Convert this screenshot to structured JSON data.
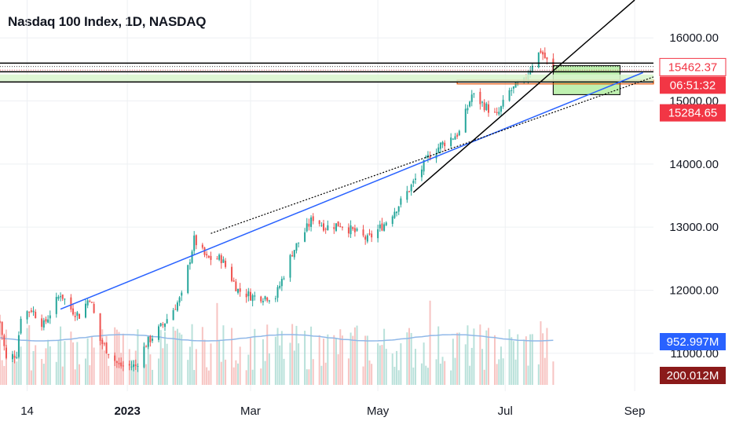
{
  "header": {
    "title": "Nasdaq 100 Index, 1D, NASDAQ"
  },
  "colors": {
    "up": "#26a69a",
    "down": "#ef5350",
    "trend_blue": "#2962ff",
    "volume_ma": "#90b8e8",
    "badge_red": "#f23645",
    "badge_blue": "#2962ff",
    "badge_dark_red": "#8b1a1a",
    "zone_green": "#b9f0a8",
    "zone_orange": "#e65100"
  },
  "badges": {
    "price": "15462.37",
    "countdown": "06:51:32",
    "level": "15284.65",
    "volume": "952.997M",
    "volume_ma": "200.012M"
  },
  "chart_data": {
    "type": "candlestick",
    "title": "Nasdaq 100 Index, 1D, NASDAQ",
    "y_ticks": [
      "16000.00",
      "15000.00",
      "14000.00",
      "13000.00",
      "12000.00",
      "11000.00"
    ],
    "y_range": [
      10400,
      16600
    ],
    "x_ticks": [
      "14",
      "2023",
      "Mar",
      "May",
      "Jul",
      "Sep"
    ],
    "x_range": [
      "2022-11-01",
      "2023-09-10"
    ],
    "grid": true,
    "last_price": 15462.37,
    "price_path": [
      [
        "2022-11-01",
        11500
      ],
      [
        "2022-11-04",
        10900
      ],
      [
        "2022-11-09",
        11000
      ],
      [
        "2022-11-11",
        11600
      ],
      [
        "2022-11-16",
        11700
      ],
      [
        "2022-11-22",
        11450
      ],
      [
        "2022-11-30",
        11950
      ],
      [
        "2022-12-05",
        11700
      ],
      [
        "2022-12-09",
        11600
      ],
      [
        "2022-12-14",
        11900
      ],
      [
        "2022-12-19",
        11200
      ],
      [
        "2022-12-28",
        10800
      ],
      [
        "2023-01-05",
        10800
      ],
      [
        "2023-01-10",
        11150
      ],
      [
        "2023-01-18",
        11450
      ],
      [
        "2023-01-27",
        11900
      ],
      [
        "2023-02-02",
        12800
      ],
      [
        "2023-02-08",
        12500
      ],
      [
        "2023-02-15",
        12500
      ],
      [
        "2023-02-23",
        12000
      ],
      [
        "2023-03-02",
        11900
      ],
      [
        "2023-03-13",
        11900
      ],
      [
        "2023-03-21",
        12600
      ],
      [
        "2023-03-31",
        13150
      ],
      [
        "2023-04-06",
        13000
      ],
      [
        "2023-04-13",
        13050
      ],
      [
        "2023-04-21",
        12900
      ],
      [
        "2023-04-26",
        12800
      ],
      [
        "2023-05-04",
        13050
      ],
      [
        "2023-05-12",
        13400
      ],
      [
        "2023-05-18",
        13700
      ],
      [
        "2023-05-25",
        14100
      ],
      [
        "2023-05-31",
        14300
      ],
      [
        "2023-06-09",
        14500
      ],
      [
        "2023-06-15",
        15100
      ],
      [
        "2023-06-22",
        14900
      ],
      [
        "2023-06-27",
        14750
      ],
      [
        "2023-07-03",
        15150
      ],
      [
        "2023-07-10",
        15300
      ],
      [
        "2023-07-14",
        15600
      ],
      [
        "2023-07-18",
        15800
      ],
      [
        "2023-07-24",
        15450
      ]
    ],
    "horizontal_levels": [
      15600,
      15545,
      15490,
      15462.37,
      15410,
      15284.65
    ],
    "trendlines": [
      {
        "style": "solid",
        "color": "blue",
        "from": [
          "2022-11-30",
          11700
        ],
        "to": [
          "2023-09-05",
          15450
        ]
      },
      {
        "style": "dotted",
        "color": "black",
        "from": [
          "2023-02-10",
          12900
        ],
        "to": [
          "2023-09-10",
          15380
        ]
      },
      {
        "style": "solid",
        "color": "black",
        "from": [
          "2023-05-18",
          13550
        ],
        "to": [
          "2023-09-01",
          16600
        ]
      }
    ],
    "zones": [
      {
        "color": "green",
        "from": "2023-07-24",
        "to": "2023-08-25",
        "y_top": 15560,
        "y_bottom": 15100
      },
      {
        "color": "orange",
        "from": "2023-06-08",
        "to": "2023-09-10",
        "y_top": 15330,
        "y_bottom": 15270
      }
    ],
    "volume": {
      "ma_level": 200.012,
      "last_volume": 952.997,
      "unit": "M"
    }
  }
}
